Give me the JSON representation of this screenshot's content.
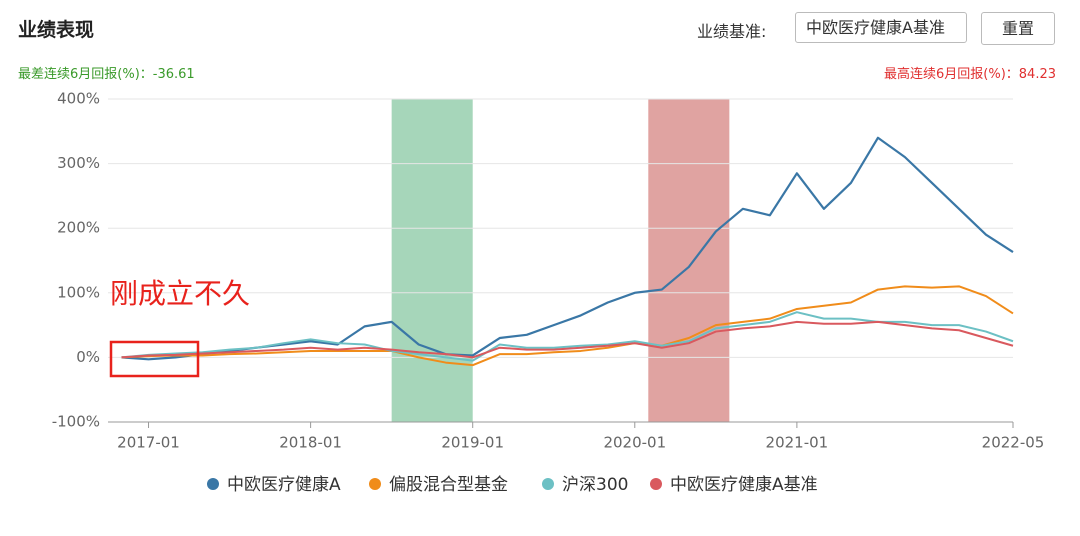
{
  "header": {
    "title": "业绩表现",
    "benchmark_label": "业绩基准:",
    "benchmark_input": "中欧医疗健康A基准",
    "reset_button": "重置",
    "worst_label": "最差连续6月回报(%)：",
    "worst_value": -36.61,
    "best_label": "最高连续6月回报(%)：",
    "best_value": 84.23
  },
  "chart_data": {
    "type": "line",
    "x": [
      "2016-11",
      "2017-01",
      "2017-03",
      "2017-05",
      "2017-07",
      "2017-09",
      "2017-11",
      "2018-01",
      "2018-03",
      "2018-05",
      "2018-07",
      "2018-09",
      "2018-11",
      "2019-01",
      "2019-03",
      "2019-05",
      "2019-07",
      "2019-09",
      "2019-11",
      "2020-01",
      "2020-03",
      "2020-05",
      "2020-07",
      "2020-09",
      "2020-11",
      "2021-01",
      "2021-03",
      "2021-05",
      "2021-07",
      "2021-09",
      "2021-11",
      "2022-01",
      "2022-03",
      "2022-05"
    ],
    "series": [
      {
        "name": "中欧医疗健康A",
        "color": "#3a77a6",
        "values": [
          0,
          -3,
          0,
          5,
          10,
          15,
          20,
          25,
          20,
          48,
          55,
          20,
          5,
          3,
          30,
          35,
          50,
          65,
          85,
          100,
          105,
          140,
          195,
          230,
          220,
          285,
          230,
          270,
          340,
          310,
          270,
          230,
          190,
          163
        ]
      },
      {
        "name": "偏股混合型基金",
        "color": "#f08c1a",
        "values": [
          0,
          2,
          3,
          3,
          5,
          6,
          8,
          10,
          10,
          10,
          10,
          0,
          -8,
          -12,
          5,
          5,
          8,
          10,
          15,
          22,
          18,
          30,
          50,
          55,
          60,
          75,
          80,
          85,
          105,
          110,
          108,
          110,
          95,
          68
        ]
      },
      {
        "name": "沪深300",
        "color": "#6cc0c4",
        "values": [
          0,
          4,
          6,
          8,
          12,
          15,
          22,
          28,
          22,
          20,
          10,
          5,
          0,
          -5,
          20,
          15,
          15,
          18,
          20,
          25,
          18,
          25,
          45,
          50,
          55,
          70,
          60,
          60,
          55,
          55,
          50,
          50,
          40,
          25
        ]
      },
      {
        "name": "中欧医疗健康A基准",
        "color": "#d9595e",
        "values": [
          0,
          3,
          4,
          6,
          8,
          10,
          12,
          15,
          12,
          15,
          12,
          8,
          5,
          0,
          15,
          12,
          12,
          15,
          18,
          22,
          15,
          22,
          40,
          45,
          48,
          55,
          52,
          52,
          55,
          50,
          45,
          42,
          30,
          18
        ]
      }
    ],
    "xlim": [
      "2016-10",
      "2022-05"
    ],
    "xticks": [
      "2017-01",
      "2018-01",
      "2019-01",
      "2020-01",
      "2021-01",
      "2022-05"
    ],
    "ylim": [
      -100,
      400
    ],
    "yticks": [
      {
        "value": -100,
        "label": "-100%"
      },
      {
        "value": 0,
        "label": "0%"
      },
      {
        "value": 100,
        "label": "100%"
      },
      {
        "value": 200,
        "label": "200%"
      },
      {
        "value": 300,
        "label": "300%"
      },
      {
        "value": 400,
        "label": "400%"
      }
    ],
    "grid": true,
    "worst_period": [
      "2018-07",
      "2019-01"
    ],
    "worst_color": "#a6d6ba",
    "best_period": [
      "2020-02",
      "2020-08"
    ],
    "best_color": "#e0a3a1",
    "annotation": "刚成立不久",
    "annotation_color": "#e8221c",
    "legend": "bottom"
  }
}
